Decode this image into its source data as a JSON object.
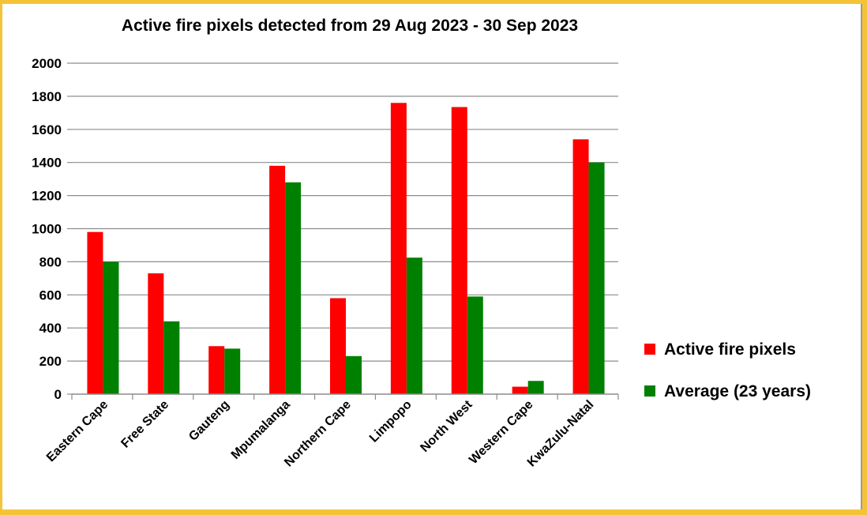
{
  "chart_data": {
    "type": "bar",
    "title": "Active fire pixels detected from 29 Aug 2023 - 30 Sep 2023",
    "categories": [
      "Eastern Cape",
      "Free State",
      "Gauteng",
      "Mpumalanga",
      "Northern Cape",
      "Limpopo",
      "North West",
      "Western Cape",
      "KwaZulu-Natal"
    ],
    "series": [
      {
        "name": "Active fire pixels",
        "color": "#ff0000",
        "values": [
          980,
          730,
          290,
          1380,
          580,
          1760,
          1735,
          45,
          1540
        ]
      },
      {
        "name": "Average (23 years)",
        "color": "#008000",
        "values": [
          800,
          440,
          275,
          1280,
          230,
          825,
          590,
          80,
          1400
        ]
      }
    ],
    "ylim": [
      0,
      2000
    ],
    "yticks": [
      0,
      200,
      400,
      600,
      800,
      1000,
      1200,
      1400,
      1600,
      1800,
      2000
    ],
    "grid": true,
    "legend_position": "right"
  }
}
